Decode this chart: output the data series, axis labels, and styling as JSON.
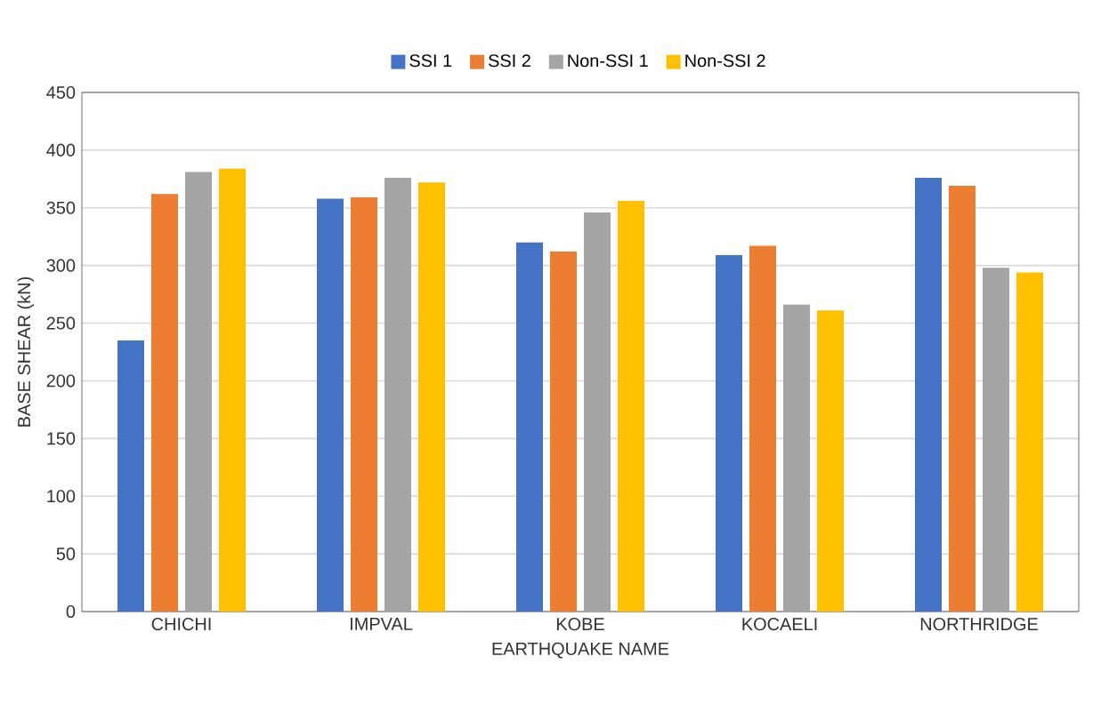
{
  "chart_data": {
    "type": "bar",
    "xlabel": "EARTHQUAKE NAME",
    "ylabel": "BASE SHEAR (kN)",
    "categories": [
      "CHICHI",
      "IMPVAL",
      "KOBE",
      "KOCAELI",
      "NORTHRIDGE"
    ],
    "series": [
      {
        "name": "SSI 1",
        "color": "#4472c4",
        "values": [
          235,
          358,
          320,
          309,
          376
        ]
      },
      {
        "name": "SSI 2",
        "color": "#ed7d31",
        "values": [
          362,
          359,
          312,
          317,
          369
        ]
      },
      {
        "name": "Non-SSI 1",
        "color": "#a5a5a5",
        "values": [
          381,
          376,
          346,
          266,
          298
        ]
      },
      {
        "name": "Non-SSI 2",
        "color": "#ffc000",
        "values": [
          384,
          372,
          356,
          261,
          294
        ]
      }
    ],
    "ylim": [
      0,
      450
    ],
    "yticks": [
      0,
      50,
      100,
      150,
      200,
      250,
      300,
      350,
      400,
      450
    ],
    "grid": "y",
    "legend": "top"
  }
}
